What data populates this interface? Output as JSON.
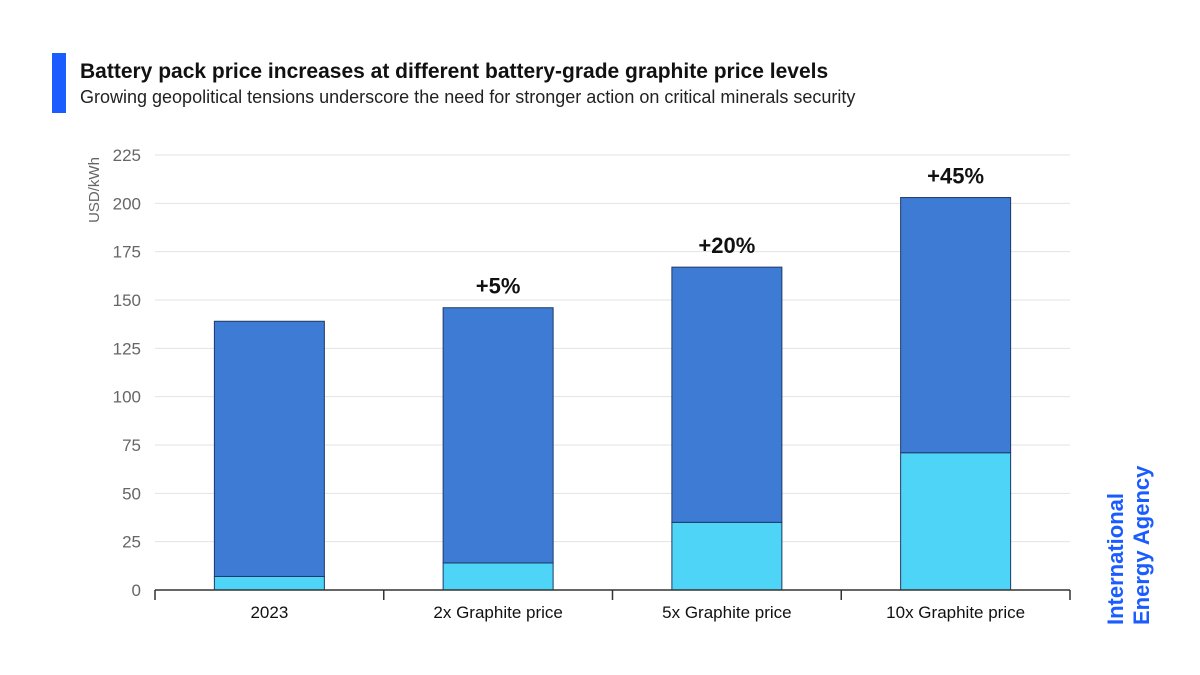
{
  "header": {
    "title": "Battery pack price increases at different battery-grade graphite price levels",
    "subtitle": "Growing geopolitical tensions underscore the need for stronger action on critical minerals security"
  },
  "brand": {
    "line1": "International",
    "line2": "Energy Agency",
    "color": "#1a5cff"
  },
  "chart_data": {
    "type": "bar",
    "stacked": true,
    "categories": [
      "2023",
      "2x Graphite price",
      "5x Graphite price",
      "10x Graphite price"
    ],
    "series": [
      {
        "values": [
          7,
          14,
          35,
          71
        ],
        "color": "#4dd4f7"
      },
      {
        "values": [
          132,
          132,
          132,
          132
        ],
        "color": "#3d7bd4"
      }
    ],
    "totals": [
      139,
      146,
      167,
      203
    ],
    "annotations": [
      "",
      "+5%",
      "+20%",
      "+45%"
    ],
    "ylabel": "USD/kWh",
    "yticks": [
      0,
      25,
      50,
      75,
      100,
      125,
      150,
      175,
      200,
      225
    ],
    "ylim": [
      0,
      225
    ],
    "grid": true
  }
}
